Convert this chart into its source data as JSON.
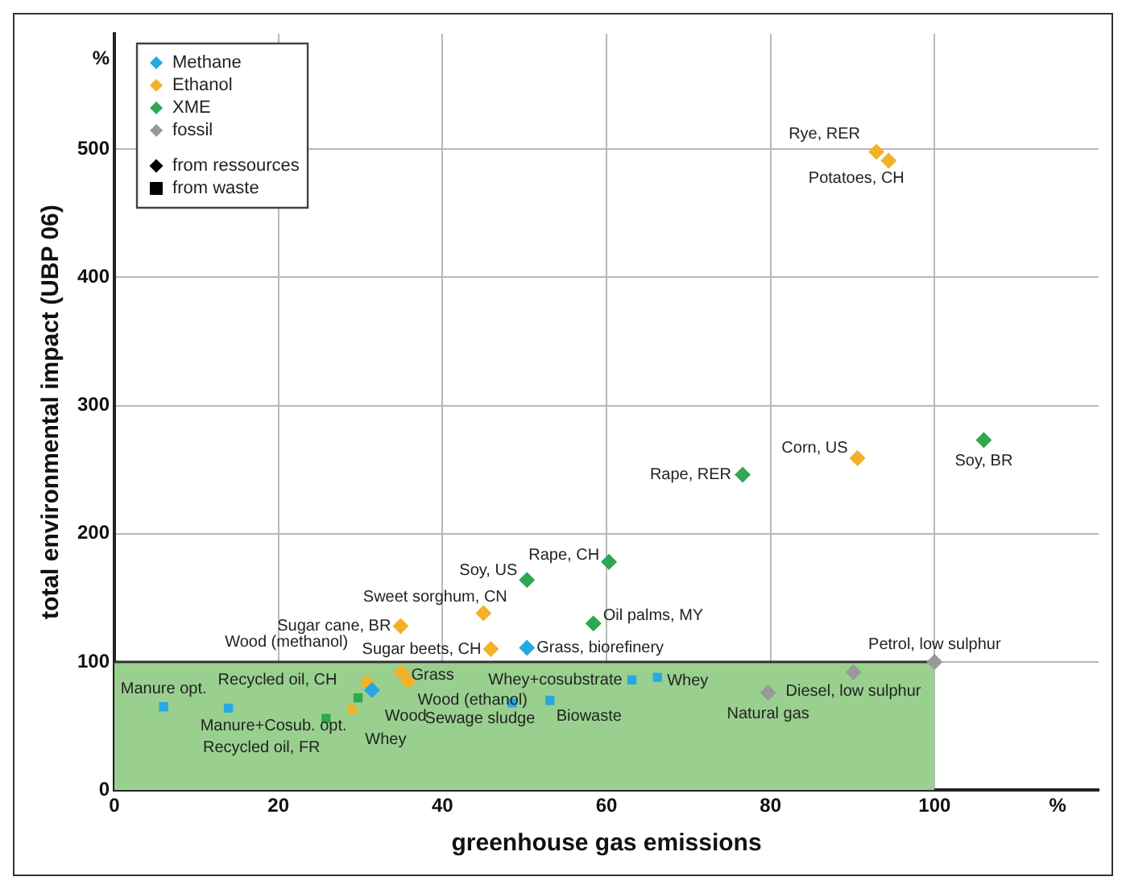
{
  "chart_data": {
    "type": "scatter",
    "xlabel": "greenhouse gas emissions",
    "ylabel": "total environmental impact (UBP 06)",
    "xlim": [
      0,
      120
    ],
    "ylim": [
      0,
      590
    ],
    "xticks": [
      0,
      20,
      40,
      60,
      80,
      100,
      {
        "value": 115,
        "label": "%"
      }
    ],
    "yticks": [
      0,
      100,
      200,
      300,
      400,
      500,
      {
        "value": 570,
        "label": "%"
      }
    ],
    "grid": true,
    "legend": "top left",
    "series": [
      {
        "name": "Methane",
        "color": "#29a8e0",
        "marker": "diamond",
        "x": [
          31.4,
          50.3
        ],
        "values": [
          78,
          111
        ]
      },
      {
        "color": "#29a8e0",
        "marker": "square",
        "x": [
          6.0,
          13.9,
          48.5,
          53.1,
          63.1,
          66.2
        ],
        "values": [
          65,
          64,
          68,
          70,
          86,
          88
        ]
      },
      {
        "name": "Ethanol",
        "color": "#f2b127",
        "marker": "diamond",
        "x": [
          92.9,
          94.4,
          90.6,
          34.9,
          45.0,
          45.9,
          35.0,
          35.8,
          30.8
        ],
        "values": [
          498,
          491,
          259,
          128,
          138,
          110,
          92,
          85,
          84
        ]
      },
      {
        "color": "#f2b127",
        "marker": "square",
        "x": [
          29.0
        ],
        "values": [
          63
        ]
      },
      {
        "name": "XME",
        "color": "#2fa84f",
        "marker": "diamond",
        "x": [
          106.0,
          76.6,
          60.3,
          50.3,
          58.4
        ],
        "values": [
          273,
          246,
          178,
          164,
          130
        ]
      },
      {
        "color": "#2fa84f",
        "marker": "square",
        "x": [
          29.7,
          25.8
        ],
        "values": [
          72,
          56
        ]
      },
      {
        "name": "fossil",
        "color": "#999999",
        "marker": "diamond",
        "x": [
          79.7,
          90.1,
          100
        ],
        "values": [
          76,
          92,
          100
        ]
      },
      {
        "type": "area",
        "color": "#99d08f",
        "x": [
          0,
          100
        ],
        "values": [
          100,
          100
        ]
      }
    ],
    "annotations": [
      {
        "text": "Manure opt.",
        "x": 6.0,
        "y": 65
      },
      {
        "text": "Manure+Cosub. opt.",
        "x": 13.9,
        "y": 64
      },
      {
        "text": "Sewage sludge",
        "x": 48.5,
        "y": 68
      },
      {
        "text": "Biowaste",
        "x": 53.1,
        "y": 70
      },
      {
        "text": "Whey+cosubstrate",
        "x": 63.1,
        "y": 86
      },
      {
        "text": "Whey",
        "x": 66.2,
        "y": 88
      },
      {
        "text": "Grass, biorefinery",
        "x": 50.3,
        "y": 111
      },
      {
        "text": "Wood",
        "x": 31.4,
        "y": 78
      },
      {
        "text": "Rye, RER",
        "x": 92.9,
        "y": 498
      },
      {
        "text": "Potatoes, CH",
        "x": 94.4,
        "y": 491
      },
      {
        "text": "Corn, US",
        "x": 90.6,
        "y": 259
      },
      {
        "text": "Sugar cane, BR",
        "x": 34.9,
        "y": 128
      },
      {
        "text": "Sweet sorghum, CN",
        "x": 45.0,
        "y": 138
      },
      {
        "text": "Sugar beets, CH",
        "x": 45.9,
        "y": 110
      },
      {
        "text": "Grass",
        "x": 35.0,
        "y": 92
      },
      {
        "text": "Wood (ethanol)",
        "x": 35.8,
        "y": 85
      },
      {
        "text": "Wood (methanol)",
        "x": 30.8,
        "y": 84
      },
      {
        "text": "Whey",
        "x": 29.0,
        "y": 63
      },
      {
        "text": "Soy, BR",
        "x": 106.0,
        "y": 273
      },
      {
        "text": "Rape, RER",
        "x": 76.6,
        "y": 246
      },
      {
        "text": "Rape, CH",
        "x": 60.3,
        "y": 178
      },
      {
        "text": "Soy, US",
        "x": 50.3,
        "y": 164
      },
      {
        "text": "Oil palms, MY",
        "x": 58.4,
        "y": 130
      },
      {
        "text": "Recycled oil, CH",
        "x": 29.7,
        "y": 72
      },
      {
        "text": "Recycled oil, FR",
        "x": 25.8,
        "y": 56
      },
      {
        "text": "Natural gas",
        "x": 79.7,
        "y": 76
      },
      {
        "text": "Diesel, low sulphur",
        "x": 90.1,
        "y": 92
      },
      {
        "text": "Petrol, low sulphur",
        "x": 100,
        "y": 100
      },
      "from ressources",
      "from waste"
    ]
  }
}
